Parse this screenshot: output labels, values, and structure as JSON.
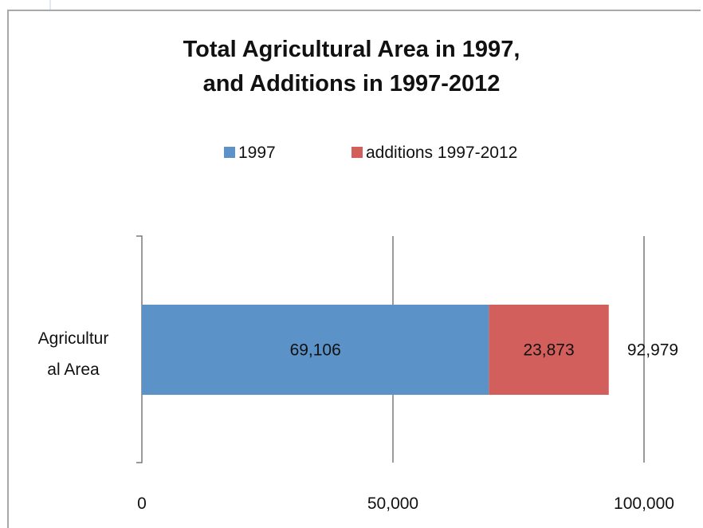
{
  "chart_data": {
    "type": "bar",
    "orientation": "horizontal",
    "stacked": true,
    "title_lines": [
      "Total Agricultural Area in 1997,",
      "and Additions in 1997-2012"
    ],
    "categories": [
      "Agricultural Area"
    ],
    "category_label_lines": [
      "Agricultur",
      "al Area"
    ],
    "series": [
      {
        "name": "1997",
        "values": [
          69106
        ],
        "color": "#5b93c8",
        "label": "69,106"
      },
      {
        "name": "additions 1997-2012",
        "values": [
          23873
        ],
        "color": "#d35f5c",
        "label": "23,873"
      }
    ],
    "total_label": "92,979",
    "xlim": [
      0,
      100000
    ],
    "x_ticks": [
      0,
      50000,
      100000
    ],
    "x_tick_labels": [
      "0",
      "50,000",
      "100,000"
    ],
    "grid": true,
    "legend_position": "top"
  }
}
